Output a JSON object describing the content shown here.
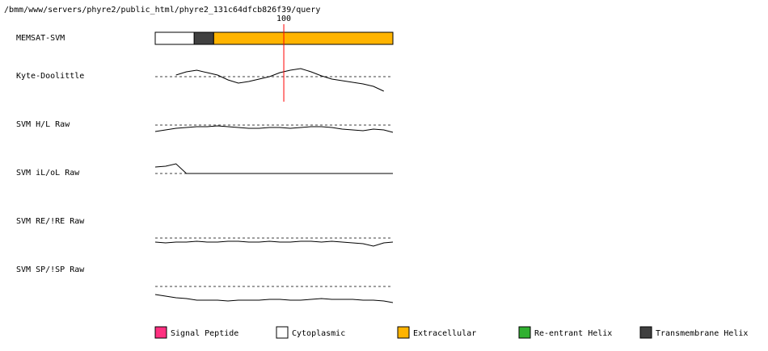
{
  "chart_data": {
    "type": "memsat",
    "path": "/bmm/www/servers/phyre2/public_html/phyre2_131c64dfcb826f39/query",
    "xlim": [
      1,
      184
    ],
    "marker": 100,
    "topology_label": "MEMSAT-SVM",
    "topology": [
      {
        "name": "Cytoplasmic",
        "start": 1,
        "end": 31,
        "color": "#ffffff"
      },
      {
        "name": "Transmembrane Helix",
        "start": 31,
        "end": 46,
        "color": "#404040"
      },
      {
        "name": "Extracellular",
        "start": 46,
        "end": 184,
        "color": "#ffb400"
      }
    ],
    "x": [
      1,
      9,
      17,
      25,
      33,
      41,
      49,
      57,
      65,
      73,
      81,
      89,
      97,
      105,
      113,
      121,
      129,
      137,
      145,
      153,
      161,
      169,
      177,
      184
    ],
    "ylim": [
      -20,
      20
    ],
    "series": [
      {
        "name": "Kyte-Doolittle",
        "color": "#000000",
        "values": [
          null,
          null,
          2,
          6,
          8,
          5,
          2,
          -4,
          -8,
          -6,
          -3,
          0,
          5,
          8,
          10,
          6,
          1,
          -3,
          -5,
          -7,
          -9,
          -12,
          -18,
          null
        ]
      },
      {
        "name": "SVM H/L Raw",
        "color": "#000000",
        "values": [
          -8,
          -6,
          -4,
          -3,
          -2,
          -2,
          -1,
          -2,
          -3,
          -4,
          -4,
          -3,
          -3,
          -4,
          -3,
          -2,
          -2,
          -3,
          -5,
          -6,
          -7,
          -5,
          -6,
          -9
        ]
      },
      {
        "name": "SVM iL/oL Raw",
        "color": "#000000",
        "values": [
          8,
          9,
          12,
          0,
          0,
          0,
          0,
          0,
          0,
          0,
          0,
          0,
          0,
          0,
          0,
          0,
          0,
          0,
          0,
          0,
          0,
          0,
          0,
          0
        ]
      },
      {
        "name": "SVM RE/!RE Raw",
        "color": "#000000",
        "values": [
          -5,
          -6,
          -5,
          -5,
          -4,
          -5,
          -5,
          -4,
          -4,
          -5,
          -5,
          -4,
          -5,
          -5,
          -4,
          -4,
          -5,
          -4,
          -5,
          -6,
          -7,
          -10,
          -6,
          -5
        ]
      },
      {
        "name": "SVM SP/!SP Raw",
        "color": "#000000",
        "values": [
          -10,
          -12,
          -14,
          -15,
          -17,
          -17,
          -17,
          -18,
          -17,
          -17,
          -17,
          -16,
          -16,
          -17,
          -17,
          -16,
          -15,
          -16,
          -16,
          -16,
          -17,
          -17,
          -18,
          -20
        ]
      }
    ],
    "legend": [
      {
        "name": "Signal Peptide",
        "color": "#ff3080"
      },
      {
        "name": "Cytoplasmic",
        "color": "#ffffff"
      },
      {
        "name": "Extracellular",
        "color": "#ffb400"
      },
      {
        "name": "Re-entrant Helix",
        "color": "#30b030"
      },
      {
        "name": "Transmembrane Helix",
        "color": "#404040"
      }
    ]
  }
}
